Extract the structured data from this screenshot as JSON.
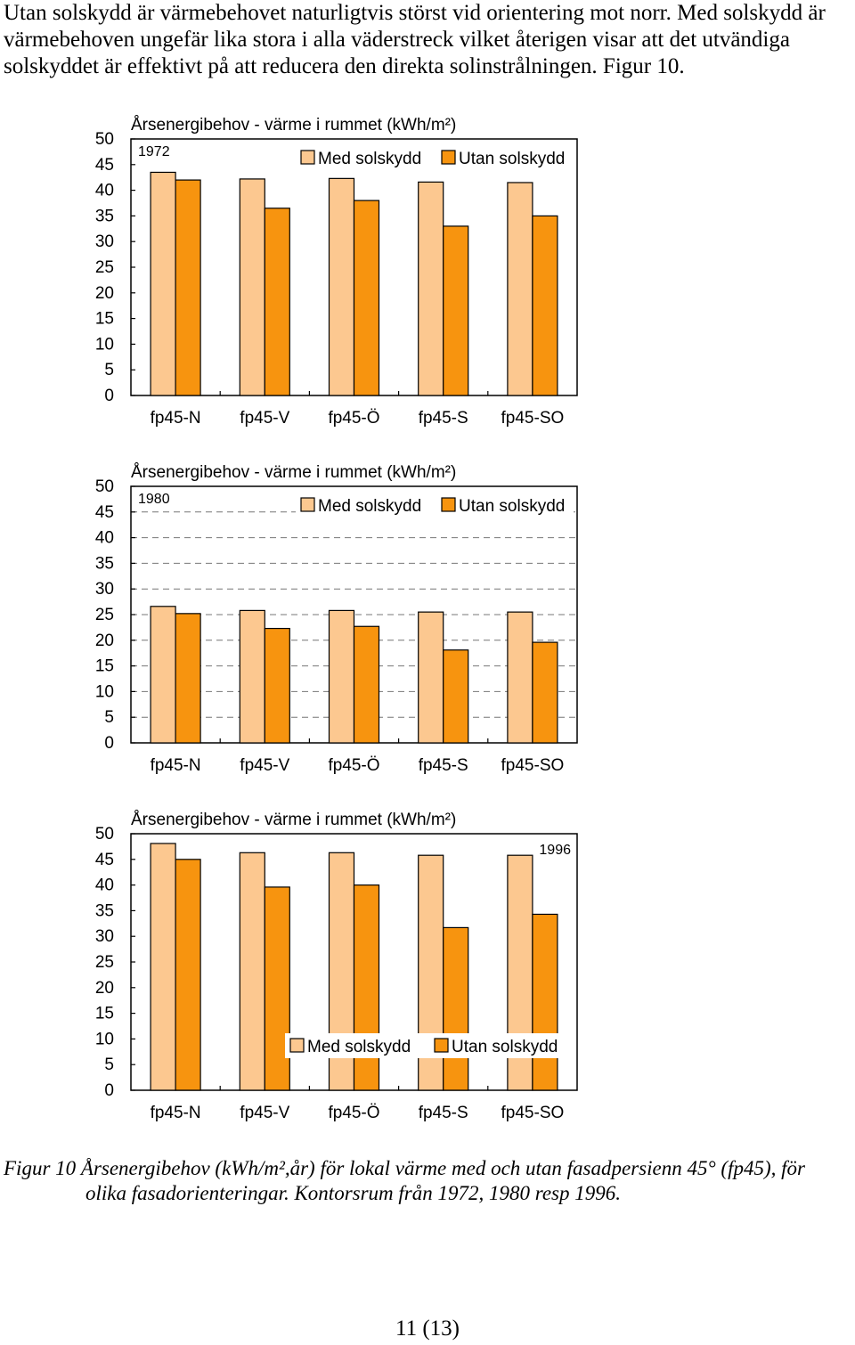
{
  "intro_text": "Utan solskydd är värmebehovet naturligtvis störst vid orientering mot norr. Med solskydd är värmebehoven ungefär lika stora i alla väderstreck vilket återigen visar att det utvändiga solskyddet är effektivt på att reducera den direkta solinstrålningen. Figur 10.",
  "colors": {
    "med": "#fcc890",
    "utan": "#f7940f",
    "grid": "#777777"
  },
  "chart_data": [
    {
      "type": "bar",
      "title": "Årsenergibehov - värme i rummet (kWh/m²)",
      "year_label": "1972",
      "categories": [
        "fp45-N",
        "fp45-V",
        "fp45-Ö",
        "fp45-S",
        "fp45-SO"
      ],
      "series": [
        {
          "name": "Med solskydd",
          "values": [
            43.5,
            42.2,
            42.3,
            41.6,
            41.5
          ]
        },
        {
          "name": "Utan solskydd",
          "values": [
            42.0,
            36.5,
            38.0,
            33.0,
            35.0
          ]
        }
      ],
      "ylim": [
        0,
        50
      ],
      "yticks": [
        0,
        5,
        10,
        15,
        20,
        25,
        30,
        35,
        40,
        45,
        50
      ],
      "grid": false,
      "legend_position": "top-right"
    },
    {
      "type": "bar",
      "title": "Årsenergibehov - värme i rummet (kWh/m²)",
      "year_label": "1980",
      "categories": [
        "fp45-N",
        "fp45-V",
        "fp45-Ö",
        "fp45-S",
        "fp45-SO"
      ],
      "series": [
        {
          "name": "Med solskydd",
          "values": [
            26.6,
            25.8,
            25.8,
            25.5,
            25.5
          ]
        },
        {
          "name": "Utan solskydd",
          "values": [
            25.2,
            22.3,
            22.7,
            18.1,
            19.6
          ]
        }
      ],
      "ylim": [
        0,
        50
      ],
      "yticks": [
        0,
        5,
        10,
        15,
        20,
        25,
        30,
        35,
        40,
        45,
        50
      ],
      "grid": true,
      "legend_position": "top-right"
    },
    {
      "type": "bar",
      "title": "Årsenergibehov - värme i rummet (kWh/m²)",
      "year_label": "1996",
      "categories": [
        "fp45-N",
        "fp45-V",
        "fp45-Ö",
        "fp45-S",
        "fp45-SO"
      ],
      "series": [
        {
          "name": "Med solskydd",
          "values": [
            48.1,
            46.3,
            46.3,
            45.8,
            45.8
          ]
        },
        {
          "name": "Utan solskydd",
          "values": [
            45.0,
            39.6,
            40.0,
            31.7,
            34.3
          ]
        }
      ],
      "ylim": [
        0,
        50
      ],
      "yticks": [
        0,
        5,
        10,
        15,
        20,
        25,
        30,
        35,
        40,
        45,
        50
      ],
      "grid": false,
      "legend_position": "bottom-right"
    }
  ],
  "caption": {
    "label": "Figur 10",
    "text_line1": "Årsenergibehov (kWh/m²,år) för lokal värme med och utan fasadpersienn 45° (fp45), för",
    "text_line2": "olika fasadorienteringar. Kontorsrum från 1972, 1980 resp 1996."
  },
  "page_number": "11 (13)"
}
